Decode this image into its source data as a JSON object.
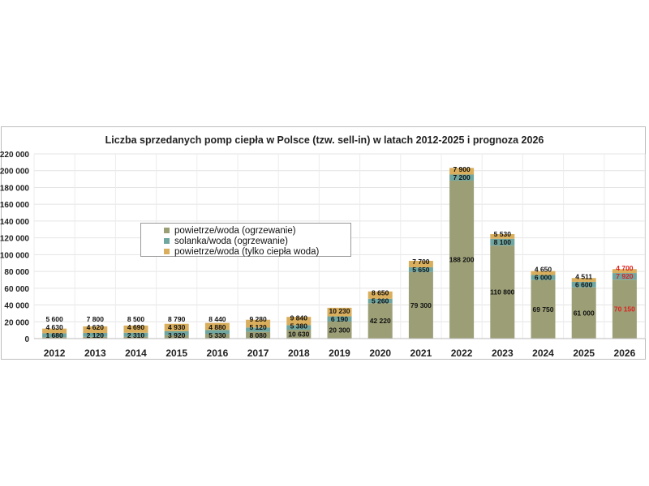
{
  "chart_data": {
    "type": "bar",
    "stacked": true,
    "title": "Liczba sprzedanych pomp ciepła w Polsce (tzw. sell-in) w latach 2012-2025 i prognoza 2026",
    "xlabel": "",
    "ylabel": "",
    "ylim": [
      0,
      220000
    ],
    "yticks": [
      "0",
      "20 000",
      "40 000",
      "60 000",
      "80 000",
      "100 000",
      "120 000",
      "140 000",
      "160 000",
      "180 000",
      "200 000",
      "220 000"
    ],
    "categories": [
      "2012",
      "2013",
      "2014",
      "2015",
      "2016",
      "2017",
      "2018",
      "2019",
      "2020",
      "2021",
      "2022",
      "2023",
      "2024",
      "2025",
      "2026"
    ],
    "series": [
      {
        "name": "powietrze/woda (ogrzewanie)",
        "color": "#9c9f76",
        "values": [
          1680,
          2120,
          2310,
          3920,
          5330,
          8080,
          10630,
          20300,
          42220,
          79300,
          188200,
          110800,
          69750,
          61000,
          70150
        ],
        "labels": [
          "1 680",
          "2 120",
          "2 310",
          "3 920",
          "5 330",
          "8 080",
          "10 630",
          "20 300",
          "42 220",
          "79 300",
          "188 200",
          "110 800",
          "69 750",
          "61 000",
          "70 150"
        ]
      },
      {
        "name": "solanka/woda (ogrzewanie)",
        "color": "#6fa6a0",
        "values": [
          4630,
          4620,
          4690,
          4930,
          4880,
          5120,
          5380,
          6190,
          5260,
          5650,
          7200,
          8100,
          6000,
          6600,
          7920
        ],
        "labels": [
          "4 630",
          "4 620",
          "4 690",
          "4 930",
          "4 880",
          "5 120",
          "5 380",
          "6 190",
          "5 260",
          "5 650",
          "7 200",
          "8 100",
          "6 000",
          "6 600",
          "7 920"
        ]
      },
      {
        "name": "powietrze/woda (tylko ciepła woda)",
        "color": "#d9ae5c",
        "values": [
          5600,
          7800,
          8500,
          8790,
          8440,
          9280,
          9840,
          10230,
          8650,
          7700,
          7900,
          5530,
          4650,
          4511,
          4700
        ],
        "labels": [
          "5 600",
          "7 800",
          "8 500",
          "8 790",
          "8 440",
          "9 280",
          "9 840",
          "10 230",
          "8 650",
          "7 700",
          "7 900",
          "5 530",
          "4 650",
          "4 511",
          "4 700"
        ]
      }
    ],
    "forecast_label_color": "#e02020",
    "legend": "top-left inside plot",
    "grid": true
  }
}
